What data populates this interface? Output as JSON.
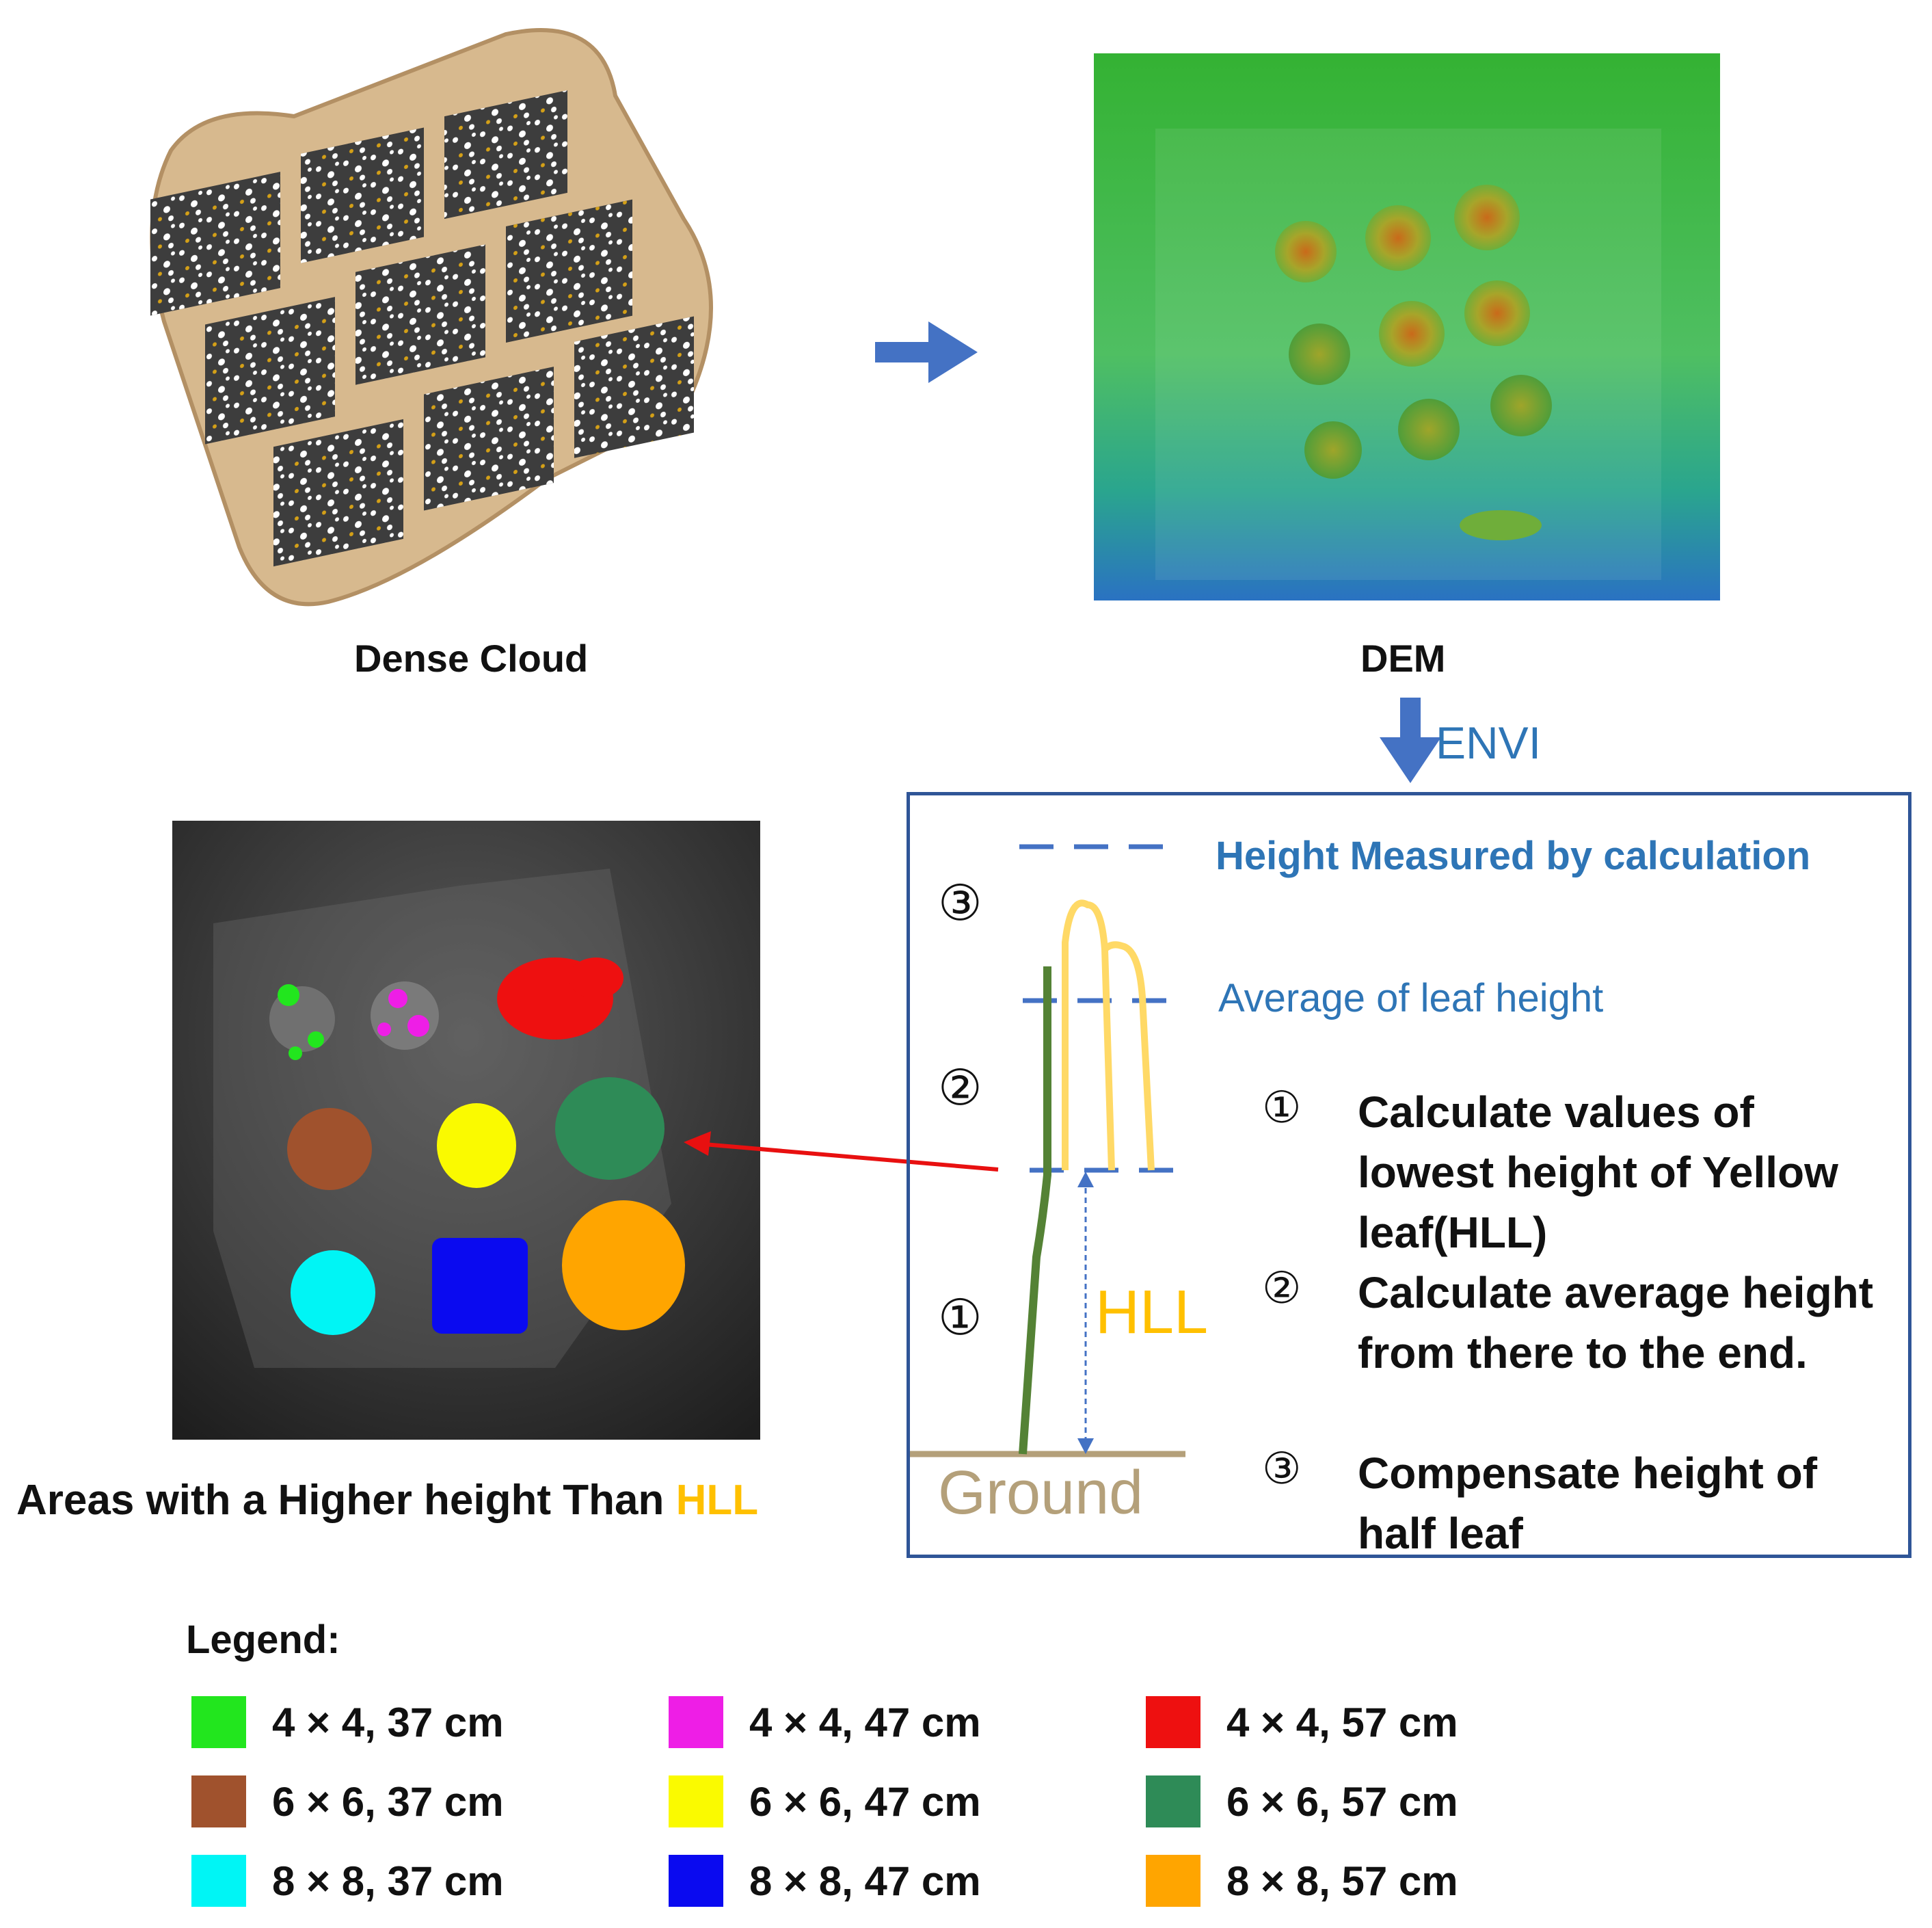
{
  "panels": {
    "dense_cloud": {
      "caption": "Dense Cloud"
    },
    "dem": {
      "caption": "DEM"
    },
    "envi_label": "ENVI",
    "areas_caption": {
      "prefix": "Areas with a Higher height Than ",
      "highlight": "HLL"
    }
  },
  "method_box": {
    "height_measured": "Height Measured by calculation",
    "average_leaf": "Average of leaf height",
    "hll_label": "HLL",
    "ground_label": "Ground",
    "markers": [
      "③",
      "②",
      "①"
    ],
    "steps": [
      {
        "num": "①",
        "text": "Calculate values of lowest height of Yellow leaf(HLL)"
      },
      {
        "num": "②",
        "text": "Calculate average height from there to the end."
      },
      {
        "num": "③",
        "text": "Compensate height of half leaf"
      }
    ]
  },
  "legend": {
    "title": "Legend:",
    "items": [
      {
        "label": "4 × 4, 37 cm",
        "color": "#22e61e"
      },
      {
        "label": "4 × 4, 47 cm",
        "color": "#ee1ee6"
      },
      {
        "label": "4 × 4, 57 cm",
        "color": "#ee1010"
      },
      {
        "label": "6 × 6, 37 cm",
        "color": "#a0522d"
      },
      {
        "label": "6 × 6, 47 cm",
        "color": "#fafa00"
      },
      {
        "label": "6 × 6, 57 cm",
        "color": "#2e8b57"
      },
      {
        "label": "8 × 8, 37 cm",
        "color": "#00f5f5"
      },
      {
        "label": "8 × 8, 47 cm",
        "color": "#0a0af0"
      },
      {
        "label": "8 × 8, 57 cm",
        "color": "#ffa500"
      }
    ]
  },
  "colors": {
    "arrow_blue": "#4472c4",
    "box_border": "#2f5597",
    "hll_yellow": "#ffc000",
    "stem_green": "#548235",
    "leaf_yellow": "#ffd966",
    "ground_tan": "#b4a07a",
    "red_arrow": "#e81010"
  }
}
